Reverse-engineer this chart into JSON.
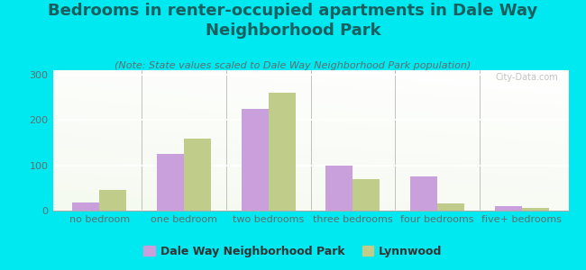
{
  "title": "Bedrooms in renter-occupied apartments in Dale Way\nNeighborhood Park",
  "subtitle": "(Note: State values scaled to Dale Way Neighborhood Park population)",
  "categories": [
    "no bedroom",
    "one bedroom",
    "two bedrooms",
    "three bedrooms",
    "four bedrooms",
    "five+ bedrooms"
  ],
  "dale_way_values": [
    18,
    125,
    225,
    100,
    75,
    10
  ],
  "lynnwood_values": [
    45,
    158,
    260,
    70,
    15,
    5
  ],
  "dale_way_color": "#c9a0dc",
  "lynnwood_color": "#bfcc8a",
  "background_outer": "#00e8f0",
  "title_color": "#1a5f5f",
  "title_fontsize": 13,
  "subtitle_fontsize": 8,
  "axis_label_fontsize": 8,
  "legend_fontsize": 9,
  "yticks": [
    0,
    100,
    200,
    300
  ],
  "ylim": [
    0,
    310
  ],
  "bar_width": 0.32,
  "watermark": "City-Data.com"
}
